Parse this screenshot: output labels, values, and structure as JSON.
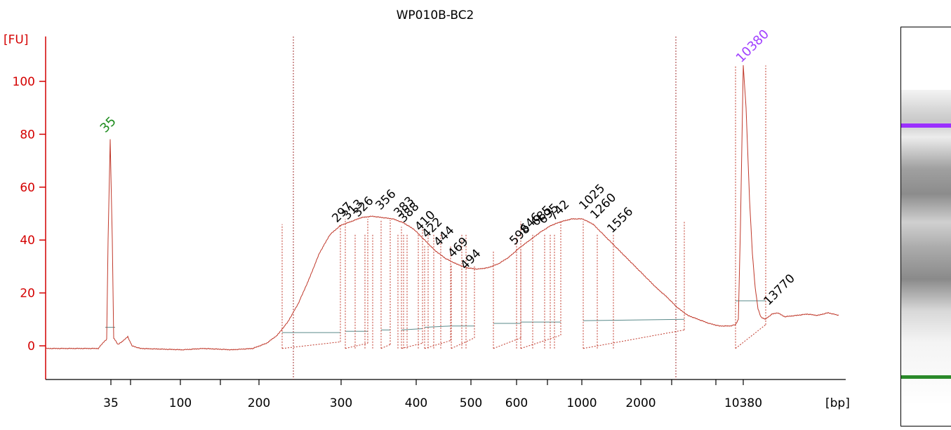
{
  "chart_data": {
    "type": "line",
    "title": "WP010B-BC2",
    "ylabel": "[FU]",
    "xlabel": "[bp]",
    "ylim": [
      -12,
      117
    ],
    "yticks": [
      0,
      20,
      40,
      60,
      80,
      100
    ],
    "ytick_labels": [
      "0",
      "20",
      "40",
      "60",
      "80",
      "100"
    ],
    "xtick_labels": [
      "35",
      "100",
      "200",
      "300",
      "400",
      "500",
      "600",
      "1000",
      "2000",
      "10380"
    ],
    "lower_marker": {
      "label": "35",
      "size_bp": 35,
      "height_fu": 78,
      "color": "#1e8c1e"
    },
    "upper_marker": {
      "label": "10380",
      "size_bp": 10380,
      "height_fu": 106,
      "color": "#a040ff"
    },
    "peak_labels": [
      "297",
      "313",
      "326",
      "356",
      "383",
      "388",
      "410",
      "422",
      "444",
      "469",
      "494",
      "598",
      "646",
      "685",
      "695",
      "742",
      "1025",
      "1260",
      "1556",
      "13770"
    ],
    "smear": {
      "first_hump_fu": 49,
      "valley_fu": 29,
      "second_hump_fu": 48,
      "baseline_fu": -1
    },
    "grid": false,
    "line_color": "#c0392b"
  },
  "gel": {
    "lower_band_color": "#2a8a2a",
    "upper_band_color": "#9b30ff"
  }
}
